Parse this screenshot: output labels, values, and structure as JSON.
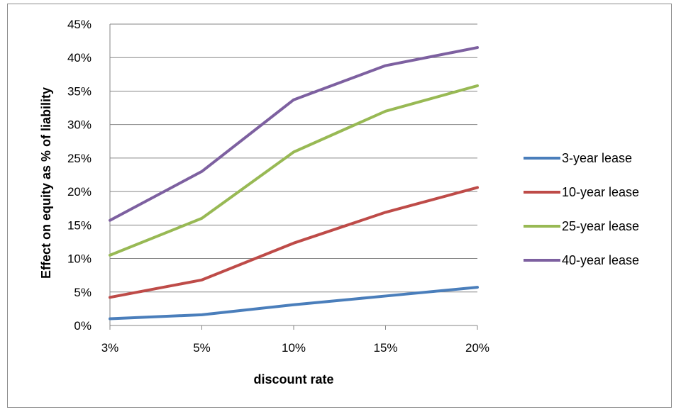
{
  "chart_data": {
    "type": "line",
    "xlabel": "discount rate",
    "ylabel": "Effect on equity as % of liability",
    "categories": [
      "3%",
      "5%",
      "10%",
      "15%",
      "20%"
    ],
    "ylim": [
      0,
      45
    ],
    "yticks": [
      "0%",
      "5%",
      "10%",
      "15%",
      "20%",
      "25%",
      "30%",
      "35%",
      "40%",
      "45%"
    ],
    "grid": "horizontal",
    "legend_position": "right",
    "series": [
      {
        "name": "3-year lease",
        "color": "#4a7ebb",
        "values": [
          1.0,
          1.6,
          3.1,
          4.4,
          5.7
        ]
      },
      {
        "name": "10-year lease",
        "color": "#be4b48",
        "values": [
          4.2,
          6.8,
          12.3,
          16.9,
          20.6
        ]
      },
      {
        "name": "25-year lease",
        "color": "#98b954",
        "values": [
          10.5,
          16.0,
          25.9,
          32.0,
          35.8
        ]
      },
      {
        "name": "40-year lease",
        "color": "#7d60a0",
        "values": [
          15.7,
          23.0,
          33.7,
          38.8,
          41.5
        ]
      }
    ]
  }
}
